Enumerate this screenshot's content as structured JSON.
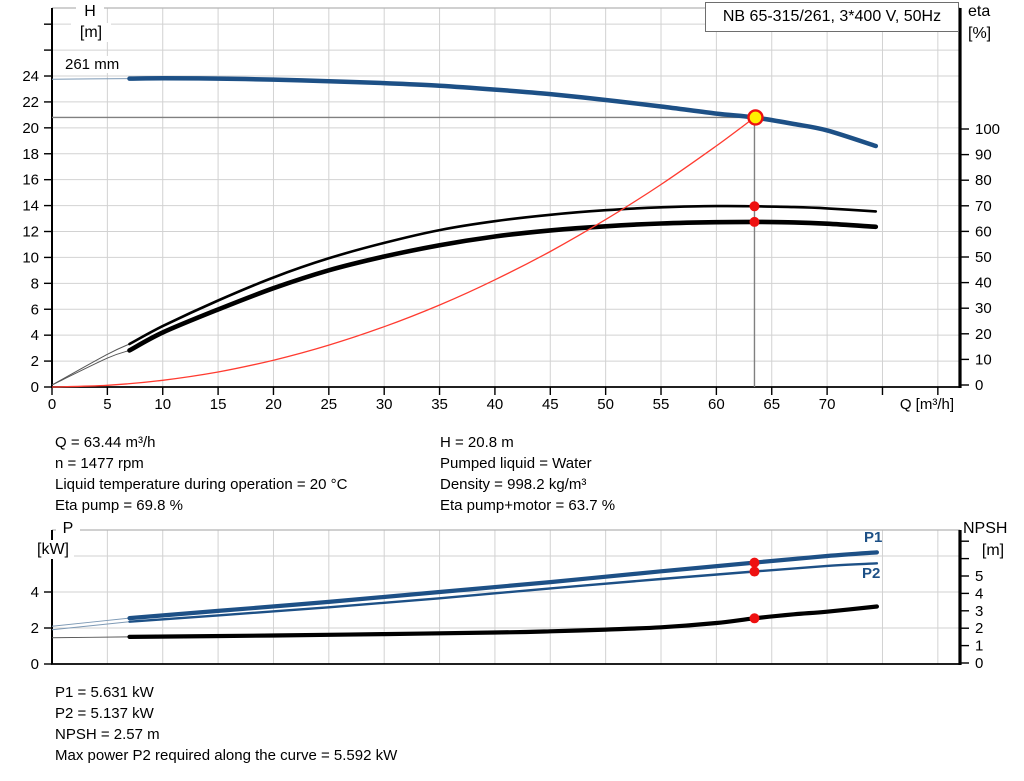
{
  "title_box": "NB 65-315/261, 3*400 V, 50Hz",
  "colors": {
    "curve_blue": "#1d5086",
    "curve_blue_thin": "#7d99b5",
    "curve_black": "#000000",
    "curve_black_thin": "#555555",
    "system_red": "#ff3b30",
    "duty_dot_red": "#ee1111",
    "duty_yellow": "#ffee00",
    "grid": "#d2d2d2",
    "frame_gray": "#b4b4b4",
    "axis_black": "#000000",
    "crosshair_gray": "#808080"
  },
  "details_left": [
    "Q = 63.44 m³/h",
    "n = 1477 rpm",
    "Liquid temperature during operation = 20 °C",
    "Eta pump = 69.8 %"
  ],
  "details_right": [
    "H = 20.8 m",
    "Pumped liquid = Water",
    "Density = 998.2 kg/m³",
    "Eta pump+motor = 63.7 %"
  ],
  "power_details": [
    "P1 = 5.631 kW",
    "P2 = 5.137 kW",
    "NPSH = 2.57 m",
    "Max power P2 required along the curve = 5.592 kW"
  ],
  "chart_data": [
    {
      "type": "line",
      "title": "NB 65-315/261, 3*400 V, 50Hz",
      "impeller_label": "261 mm",
      "x_axis": {
        "label": "Q [m³/h]",
        "min": 0,
        "max": 82,
        "ticks": [
          0,
          5,
          10,
          15,
          20,
          25,
          30,
          35,
          40,
          45,
          50,
          55,
          60,
          65,
          70
        ],
        "unlabeled_ticks": [
          75,
          80
        ],
        "grid_step": 5
      },
      "y_left": {
        "label": [
          "H",
          "[m]"
        ],
        "min": 0,
        "max": 29.3,
        "ticks": [
          0,
          2,
          4,
          6,
          8,
          10,
          12,
          14,
          16,
          18,
          20,
          22,
          24
        ],
        "unlabeled_ticks": [
          26,
          28
        ],
        "grid_step": 2
      },
      "y_right": {
        "label": [
          "eta",
          "[%]"
        ],
        "min": 0,
        "max": 100,
        "ticks": [
          0,
          10,
          20,
          30,
          40,
          50,
          60,
          70,
          80,
          90,
          100
        ]
      },
      "series": [
        {
          "name": "head-curve",
          "legend": "261 mm",
          "axis": "left",
          "color": "blue",
          "width": 4.5,
          "thin_until": 7,
          "points": [
            [
              0,
              23.75
            ],
            [
              7,
              23.8
            ],
            [
              10,
              23.82
            ],
            [
              15,
              23.8
            ],
            [
              20,
              23.72
            ],
            [
              25,
              23.6
            ],
            [
              30,
              23.45
            ],
            [
              35,
              23.25
            ],
            [
              40,
              22.95
            ],
            [
              45,
              22.6
            ],
            [
              50,
              22.15
            ],
            [
              55,
              21.65
            ],
            [
              60,
              21.1
            ],
            [
              63.44,
              20.8
            ],
            [
              67,
              20.3
            ],
            [
              70,
              19.8
            ],
            [
              74.4,
              18.6
            ]
          ]
        },
        {
          "name": "eta-pump-curve",
          "legend": "Eta pump",
          "axis": "right",
          "color": "black",
          "width": 2.6,
          "thin_until": 7,
          "points": [
            [
              0,
              0
            ],
            [
              5,
              12
            ],
            [
              7,
              16
            ],
            [
              10,
              23
            ],
            [
              15,
              33
            ],
            [
              20,
              42
            ],
            [
              25,
              49.5
            ],
            [
              30,
              55.5
            ],
            [
              35,
              60.5
            ],
            [
              40,
              64
            ],
            [
              45,
              66.5
            ],
            [
              50,
              68.3
            ],
            [
              55,
              69.4
            ],
            [
              60,
              69.9
            ],
            [
              63.44,
              69.8
            ],
            [
              67,
              69.5
            ],
            [
              70,
              69
            ],
            [
              74.4,
              67.8
            ]
          ]
        },
        {
          "name": "eta-pump-motor-curve",
          "legend": "Eta pump+motor",
          "axis": "right",
          "color": "black",
          "width": 4.6,
          "thin_until": 7,
          "points": [
            [
              0,
              0
            ],
            [
              5,
              10.5
            ],
            [
              7,
              13.5
            ],
            [
              10,
              20.5
            ],
            [
              15,
              29.5
            ],
            [
              20,
              37.8
            ],
            [
              25,
              44.8
            ],
            [
              30,
              50.2
            ],
            [
              35,
              54.6
            ],
            [
              40,
              58
            ],
            [
              45,
              60.4
            ],
            [
              50,
              62
            ],
            [
              55,
              63.1
            ],
            [
              60,
              63.6
            ],
            [
              63.44,
              63.7
            ],
            [
              67,
              63.5
            ],
            [
              70,
              63
            ],
            [
              74.4,
              61.8
            ]
          ]
        },
        {
          "name": "system-curve",
          "legend": "System curve",
          "axis": "left",
          "color": "red",
          "width": 1.3,
          "thin_until": 0,
          "points": [
            [
              0,
              0
            ],
            [
              5,
              0.13
            ],
            [
              10,
              0.52
            ],
            [
              15,
              1.16
            ],
            [
              20,
              2.07
            ],
            [
              25,
              3.23
            ],
            [
              30,
              4.65
            ],
            [
              35,
              6.33
            ],
            [
              40,
              8.27
            ],
            [
              45,
              10.46
            ],
            [
              50,
              12.92
            ],
            [
              55,
              15.63
            ],
            [
              60,
              18.61
            ],
            [
              63.44,
              20.8
            ]
          ]
        }
      ],
      "duty_point": {
        "q": 63.44,
        "h": 20.8,
        "eta_pump": 69.8,
        "eta_pump_motor": 63.7
      }
    },
    {
      "type": "line",
      "x_axis": {
        "label": "",
        "min": 0,
        "max": 82,
        "ticks": [],
        "unlabeled_ticks": [],
        "grid_step": 5
      },
      "y_left": {
        "label": [
          "P",
          "[kW]"
        ],
        "min": 0,
        "max": 7.44,
        "ticks": [
          0,
          2,
          4
        ],
        "unlabeled_ticks": [
          6
        ],
        "grid_step": 2
      },
      "y_right": {
        "label": [
          "NPSH",
          "[m]"
        ],
        "min": 0,
        "max": 7.7,
        "ticks": [
          0,
          1,
          2,
          3,
          4,
          5
        ],
        "unlabeled_ticks": [
          6,
          7
        ]
      },
      "series": [
        {
          "name": "p1-curve",
          "label": "P1",
          "axis": "left",
          "color": "blue",
          "width": 4.2,
          "thin_until": 7,
          "points": [
            [
              0,
              2.1
            ],
            [
              7,
              2.55
            ],
            [
              15,
              2.95
            ],
            [
              25,
              3.45
            ],
            [
              35,
              4.0
            ],
            [
              45,
              4.55
            ],
            [
              55,
              5.15
            ],
            [
              63.44,
              5.631
            ],
            [
              70,
              6.0
            ],
            [
              74.5,
              6.2
            ]
          ]
        },
        {
          "name": "p2-curve",
          "label": "P2",
          "axis": "left",
          "color": "blue",
          "width": 2.4,
          "thin_until": 7,
          "points": [
            [
              0,
              1.9
            ],
            [
              7,
              2.35
            ],
            [
              15,
              2.7
            ],
            [
              25,
              3.15
            ],
            [
              35,
              3.65
            ],
            [
              45,
              4.2
            ],
            [
              55,
              4.72
            ],
            [
              63.44,
              5.137
            ],
            [
              70,
              5.45
            ],
            [
              74.5,
              5.592
            ]
          ]
        },
        {
          "name": "npsh-curve",
          "label": "NPSH",
          "axis": "right",
          "color": "black",
          "width": 4.2,
          "thin_until": 7,
          "points": [
            [
              0,
              1.45
            ],
            [
              7,
              1.5
            ],
            [
              20,
              1.58
            ],
            [
              30,
              1.66
            ],
            [
              40,
              1.75
            ],
            [
              45,
              1.82
            ],
            [
              50,
              1.92
            ],
            [
              55,
              2.05
            ],
            [
              60,
              2.3
            ],
            [
              63.44,
              2.57
            ],
            [
              67,
              2.8
            ],
            [
              70,
              2.95
            ],
            [
              74.5,
              3.25
            ]
          ]
        }
      ],
      "duty_point": {
        "q": 63.44,
        "p1": 5.631,
        "p2": 5.137,
        "npsh": 2.57
      }
    }
  ]
}
